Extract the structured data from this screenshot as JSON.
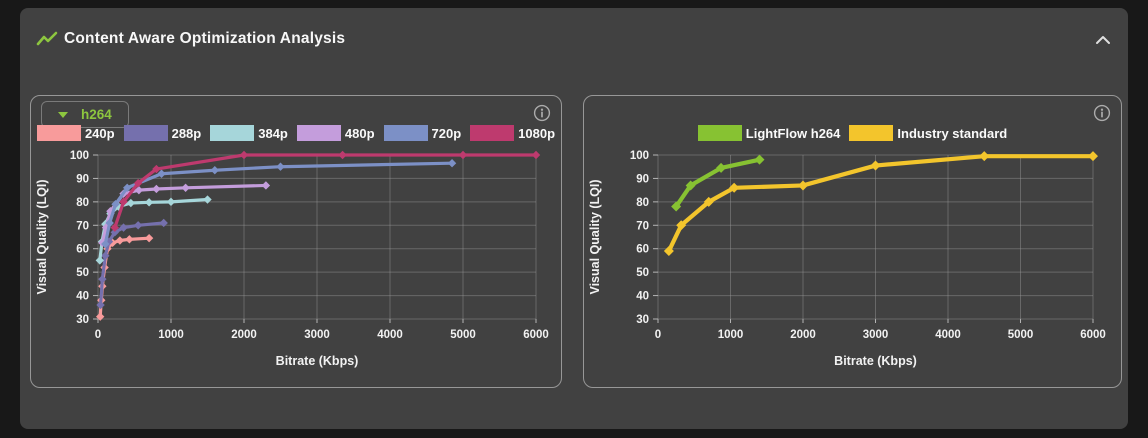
{
  "header": {
    "title": "Content Aware Optimization Analysis",
    "title_icon": "trend-line-icon",
    "collapse_icon": "chevron-up-icon"
  },
  "colors": {
    "page_bg": "#181818",
    "card_bg": "#414141",
    "panel_border": "#979797",
    "grid": "#9A9A9A",
    "tick": "#B5B5B5",
    "text": "#F2F2F2",
    "accent_green": "#8DC63F"
  },
  "left_panel": {
    "codec_selector": {
      "value": "h264",
      "icon": "chevron-down-icon"
    },
    "info_icon": "info-icon"
  },
  "right_panel": {
    "info_icon": "info-icon"
  },
  "chart_data": [
    {
      "type": "line",
      "panel": "left",
      "selected_codec": "h264",
      "xlabel": "Bitrate (Kbps)",
      "ylabel": "Visual Quality (LQI)",
      "xlim": [
        0,
        6000
      ],
      "ylim": [
        30,
        100
      ],
      "xticks": [
        0,
        1000,
        2000,
        3000,
        4000,
        5000,
        6000
      ],
      "yticks": [
        30,
        40,
        50,
        60,
        70,
        80,
        90,
        100
      ],
      "grid": true,
      "legend_position": "top",
      "marker": "diamond",
      "line_width": 3.2,
      "marker_size": 4.2,
      "series": [
        {
          "name": "240p",
          "color": "#F89B9B",
          "points": [
            [
              30,
              31
            ],
            [
              45,
              38
            ],
            [
              60,
              44
            ],
            [
              90,
              52
            ],
            [
              130,
              60
            ],
            [
              200,
              62.5
            ],
            [
              300,
              63.5
            ],
            [
              430,
              64
            ],
            [
              700,
              64.5
            ]
          ]
        },
        {
          "name": "288p",
          "color": "#7570AD",
          "points": [
            [
              35,
              36
            ],
            [
              60,
              47
            ],
            [
              100,
              57
            ],
            [
              150,
              63
            ],
            [
              230,
              67
            ],
            [
              350,
              69
            ],
            [
              550,
              70
            ],
            [
              900,
              71
            ]
          ]
        },
        {
          "name": "384p",
          "color": "#A6D6DA",
          "points": [
            [
              25,
              55
            ],
            [
              55,
              63
            ],
            [
              100,
              70.5
            ],
            [
              170,
              75
            ],
            [
              280,
              78
            ],
            [
              450,
              79.5
            ],
            [
              700,
              79.8
            ],
            [
              1000,
              80
            ],
            [
              1500,
              81
            ]
          ]
        },
        {
          "name": "480p",
          "color": "#C49DDC",
          "points": [
            [
              60,
              62.5
            ],
            [
              110,
              69
            ],
            [
              170,
              76
            ],
            [
              350,
              83.5
            ],
            [
              560,
              85
            ],
            [
              800,
              85.5
            ],
            [
              1200,
              86
            ],
            [
              2300,
              87
            ]
          ]
        },
        {
          "name": "720p",
          "color": "#7C90C6",
          "points": [
            [
              100,
              62
            ],
            [
              160,
              71
            ],
            [
              240,
              79
            ],
            [
              400,
              86
            ],
            [
              870,
              92
            ],
            [
              1600,
              93.5
            ],
            [
              2500,
              95
            ],
            [
              4850,
              96.5
            ]
          ]
        },
        {
          "name": "1080p",
          "color": "#BE3A6E",
          "points": [
            [
              230,
              69
            ],
            [
              350,
              80
            ],
            [
              550,
              88
            ],
            [
              800,
              94
            ],
            [
              2000,
              100
            ],
            [
              3350,
              100
            ],
            [
              5000,
              100
            ],
            [
              6000,
              100
            ]
          ]
        }
      ]
    },
    {
      "type": "line",
      "panel": "right",
      "xlabel": "Bitrate (Kbps)",
      "ylabel": "Visual Quality (LQI)",
      "xlim": [
        0,
        6000
      ],
      "ylim": [
        30,
        100
      ],
      "xticks": [
        0,
        1000,
        2000,
        3000,
        4000,
        5000,
        6000
      ],
      "yticks": [
        30,
        40,
        50,
        60,
        70,
        80,
        90,
        100
      ],
      "grid": true,
      "legend_position": "top",
      "marker": "diamond",
      "line_width": 4.2,
      "marker_size": 5,
      "series": [
        {
          "name": "LightFlow h264",
          "color": "#87C232",
          "points": [
            [
              250,
              78
            ],
            [
              450,
              87
            ],
            [
              870,
              94.5
            ],
            [
              1400,
              98
            ]
          ]
        },
        {
          "name": "Industry standard",
          "color": "#F3C52C",
          "points": [
            [
              150,
              59
            ],
            [
              320,
              70
            ],
            [
              700,
              80
            ],
            [
              1050,
              86
            ],
            [
              2000,
              87
            ],
            [
              3000,
              95.5
            ],
            [
              4500,
              99.5
            ],
            [
              6000,
              99.5
            ]
          ]
        }
      ]
    }
  ]
}
